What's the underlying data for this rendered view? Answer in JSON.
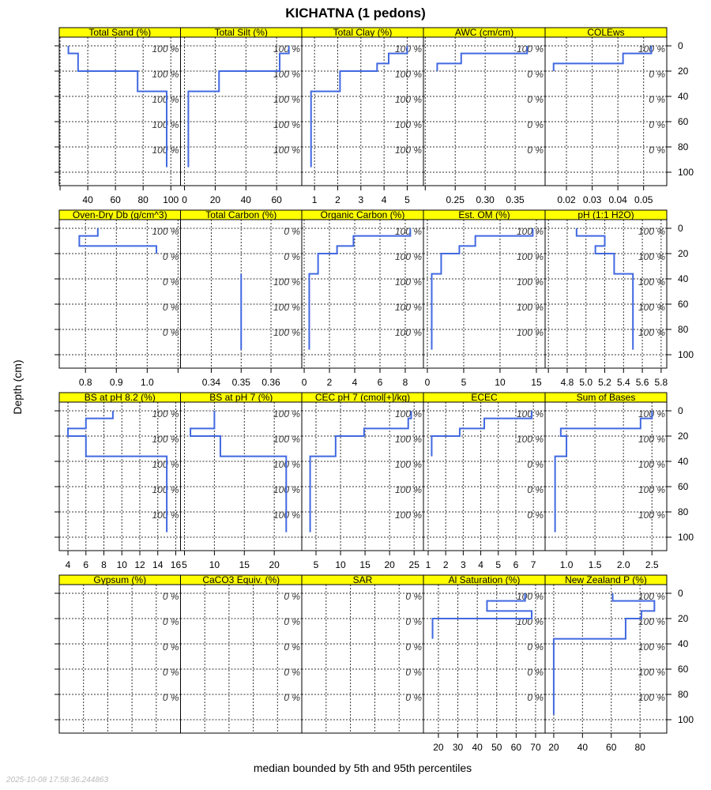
{
  "chart_data": {
    "type": "line",
    "title": "KICHATNA (1 pedons)",
    "ylabel": "Depth (cm)",
    "xlabel": "median bounded by 5th and 95th percentiles",
    "timestamp": "2025-10-08 17:58:36.244863",
    "ylim": [
      110.6,
      -6.25
    ],
    "depth_ticks": [
      0,
      20,
      40,
      60,
      80,
      100
    ],
    "depth_tick_labels": [
      "0",
      "20",
      "40",
      "60",
      "80",
      "100"
    ],
    "horizons": [
      [
        0,
        6
      ],
      [
        6,
        14
      ],
      [
        14,
        20
      ],
      [
        20,
        36
      ],
      [
        36,
        96
      ]
    ],
    "percent_label_depths": [
      2.5,
      22.5,
      42.5,
      62.5,
      82.5
    ],
    "line_color": "#4169E1",
    "strip_color": "#FFFF00",
    "panels": [
      {
        "title": "Total Sand (%)",
        "xlim": [
          19.4,
          107
        ],
        "ticks": [
          20,
          40,
          60,
          80,
          100
        ],
        "tick_labels": [
          "",
          "40",
          "60",
          "80",
          "100"
        ],
        "values": [
          26,
          33,
          33,
          76,
          97
        ],
        "percent_labels": [
          "100 %",
          "100 %",
          "100 %",
          "100 %",
          "100 %"
        ]
      },
      {
        "title": "Total Silt (%)",
        "xlim": [
          -2.6,
          76.4
        ],
        "ticks": [
          0,
          20,
          40,
          60
        ],
        "tick_labels": [
          "0",
          "20",
          "40",
          "60"
        ],
        "values": [
          68,
          62,
          62,
          22.5,
          2.5
        ],
        "percent_labels": [
          "100 %",
          "100 %",
          "100 %",
          "100 %",
          "100 %"
        ]
      },
      {
        "title": "Total Clay (%)",
        "xlim": [
          0.45,
          5.7
        ],
        "ticks": [
          1,
          2,
          3,
          4,
          5
        ],
        "tick_labels": [
          "1",
          "2",
          "3",
          "4",
          "5"
        ],
        "values": [
          5.0,
          4.2,
          3.7,
          2.1,
          0.85
        ],
        "percent_labels": [
          "100 %",
          "100 %",
          "100 %",
          "100 %",
          "100 %"
        ]
      },
      {
        "title": "AWC (cm/cm)",
        "xlim": [
          0.197,
          0.4
        ],
        "ticks": [
          0.2,
          0.25,
          0.3,
          0.35
        ],
        "tick_labels": [
          "",
          "0.25",
          "0.30",
          "0.35"
        ],
        "values": [
          0.37,
          0.26,
          0.22,
          null,
          null
        ],
        "percent_labels": [
          "100 %",
          "0 %",
          "0 %",
          "0 %",
          "0 %"
        ]
      },
      {
        "title": "COLEws",
        "xlim": [
          0.0117,
          0.059
        ],
        "ticks": [
          0.02,
          0.03,
          0.04,
          0.05
        ],
        "tick_labels": [
          "0.02",
          "0.03",
          "0.04",
          "0.05"
        ],
        "values": [
          0.053,
          0.042,
          0.015,
          null,
          null
        ],
        "percent_labels": [
          "100 %",
          "0 %",
          "0 %",
          "0 %",
          "0 %"
        ]
      },
      {
        "title": "Oven-Dry Db (g/cm^3)",
        "xlim": [
          0.715,
          1.108
        ],
        "ticks": [
          0.8,
          0.9,
          1.0,
          1.1
        ],
        "tick_labels": [
          "0.8",
          "0.9",
          "1.0",
          ""
        ],
        "values": [
          0.84,
          0.78,
          1.03,
          null,
          null
        ],
        "percent_labels": [
          "100 %",
          "0 %",
          "0 %",
          "0 %",
          "0 %"
        ]
      },
      {
        "title": "Total Carbon (%)",
        "xlim": [
          0.3297,
          0.3703
        ],
        "ticks": [
          0.34,
          0.35,
          0.36
        ],
        "tick_labels": [
          "0.34",
          "0.35",
          "0.36"
        ],
        "values": [
          null,
          null,
          null,
          null,
          0.35
        ],
        "percent_labels": [
          "0 %",
          "0 %",
          "100 %",
          "100 %",
          "100 %"
        ]
      },
      {
        "title": "Organic Carbon (%)",
        "xlim": [
          -0.19,
          9.44
        ],
        "ticks": [
          0,
          2,
          4,
          6,
          8
        ],
        "tick_labels": [
          "0",
          "2",
          "4",
          "6",
          "8"
        ],
        "values": [
          8.4,
          3.9,
          2.6,
          1.1,
          0.4
        ],
        "percent_labels": [
          "100 %",
          "100 %",
          "100 %",
          "100 %",
          "100 %"
        ]
      },
      {
        "title": "Est. OM (%)",
        "xlim": [
          -0.54,
          16.2
        ],
        "ticks": [
          0,
          5,
          10,
          15
        ],
        "tick_labels": [
          "0",
          "5",
          "10",
          "15"
        ],
        "values": [
          14.5,
          6.6,
          4.4,
          1.9,
          0.6
        ],
        "percent_labels": [
          "100 %",
          "100 %",
          "100 %",
          "100 %",
          "100 %"
        ]
      },
      {
        "title": "pH (1:1 H2O)",
        "xlim": [
          4.565,
          5.86
        ],
        "ticks": [
          4.6,
          4.8,
          5.0,
          5.2,
          5.4,
          5.6,
          5.8
        ],
        "tick_labels": [
          "",
          "4.8",
          "5.0",
          "5.2",
          "5.4",
          "5.6",
          "5.8"
        ],
        "values": [
          4.9,
          5.2,
          5.1,
          5.3,
          5.5
        ],
        "percent_labels": [
          "100 %",
          "100 %",
          "100 %",
          "100 %",
          "100 %"
        ]
      },
      {
        "title": "BS at pH 8.2 (%)",
        "xlim": [
          3.03,
          16.53
        ],
        "ticks": [
          4,
          6,
          8,
          10,
          12,
          14,
          16
        ],
        "tick_labels": [
          "4",
          "6",
          "8",
          "10",
          "12",
          "14",
          "16"
        ],
        "values": [
          9,
          6,
          4,
          6,
          15
        ],
        "percent_labels": [
          "100 %",
          "100 %",
          "100 %",
          "100 %",
          "100 %"
        ]
      },
      {
        "title": "BS at pH 7 (%)",
        "xlim": [
          4.34,
          24.6
        ],
        "ticks": [
          5,
          10,
          15,
          20
        ],
        "tick_labels": [
          "5",
          "10",
          "15",
          "20"
        ],
        "values": [
          10,
          10,
          6,
          11,
          22
        ],
        "percent_labels": [
          "100 %",
          "100 %",
          "100 %",
          "100 %",
          "100 %"
        ]
      },
      {
        "title": "CEC pH 7 (cmol[+]/kg)",
        "xlim": [
          2.1,
          26.9
        ],
        "ticks": [
          5,
          10,
          15,
          20,
          25
        ],
        "tick_labels": [
          "5",
          "10",
          "15",
          "20",
          "25"
        ],
        "values": [
          24.4,
          23.8,
          14.8,
          9,
          3.8
        ],
        "percent_labels": [
          "100 %",
          "100 %",
          "100 %",
          "100 %",
          "100 %"
        ]
      },
      {
        "title": "ECEC",
        "xlim": [
          0.73,
          7.67
        ],
        "ticks": [
          1,
          2,
          3,
          4,
          5,
          6,
          7
        ],
        "tick_labels": [
          "1",
          "2",
          "3",
          "4",
          "5",
          "6",
          "7"
        ],
        "values": [
          6.9,
          4.2,
          2.8,
          1.2,
          null
        ],
        "percent_labels": [
          "100 %",
          "100 %",
          "0 %",
          "0 %",
          "0 %"
        ]
      },
      {
        "title": "Sum of Bases",
        "xlim": [
          0.625,
          2.76
        ],
        "ticks": [
          1.0,
          1.5,
          2.0,
          2.5
        ],
        "tick_labels": [
          "1.0",
          "1.5",
          "2.0",
          "2.5"
        ],
        "values": [
          2.5,
          2.3,
          0.9,
          1.0,
          0.8
        ],
        "percent_labels": [
          "100 %",
          "100 %",
          "100 %",
          "100 %",
          "100 %"
        ]
      },
      {
        "title": "Gypsum (%)",
        "xlim": [
          0,
          1
        ],
        "ticks": [
          0.2,
          0.4,
          0.6,
          0.8
        ],
        "tick_labels": [
          "",
          "",
          "",
          ""
        ],
        "values": [
          null,
          null,
          null,
          null,
          null
        ],
        "percent_labels": [
          "0 %",
          "0 %",
          "0 %",
          "0 %",
          "0 %"
        ],
        "no_axis": true
      },
      {
        "title": "CaCO3 Equiv. (%)",
        "xlim": [
          0,
          1
        ],
        "ticks": [
          0.2,
          0.4,
          0.6,
          0.8
        ],
        "tick_labels": [
          "",
          "",
          "",
          ""
        ],
        "values": [
          null,
          null,
          null,
          null,
          null
        ],
        "percent_labels": [
          "0 %",
          "0 %",
          "0 %",
          "0 %",
          "0 %"
        ],
        "no_axis": true
      },
      {
        "title": "SAR",
        "xlim": [
          0,
          1
        ],
        "ticks": [
          0.2,
          0.4,
          0.6,
          0.8
        ],
        "tick_labels": [
          "",
          "",
          "",
          ""
        ],
        "values": [
          null,
          null,
          null,
          null,
          null
        ],
        "percent_labels": [
          "0 %",
          "0 %",
          "0 %",
          "0 %",
          "0 %"
        ],
        "no_axis": true
      },
      {
        "title": "Al Saturation (%)",
        "xlim": [
          12.3,
          74.9
        ],
        "ticks": [
          20,
          30,
          40,
          50,
          60,
          70
        ],
        "tick_labels": [
          "20",
          "30",
          "40",
          "50",
          "60",
          "70"
        ],
        "values": [
          64.6,
          45,
          68,
          17,
          null
        ],
        "percent_labels": [
          "100 %",
          "100 %",
          "0 %",
          "0 %",
          "0 %"
        ]
      },
      {
        "title": "New Zealand P (%)",
        "xlim": [
          14,
          98.6
        ],
        "ticks": [
          20,
          40,
          60,
          80
        ],
        "tick_labels": [
          "20",
          "40",
          "60",
          "80"
        ],
        "values": [
          61,
          90,
          81,
          70,
          20
        ],
        "percent_labels": [
          "100 %",
          "100 %",
          "100 %",
          "100 %",
          "100 %"
        ]
      }
    ]
  }
}
